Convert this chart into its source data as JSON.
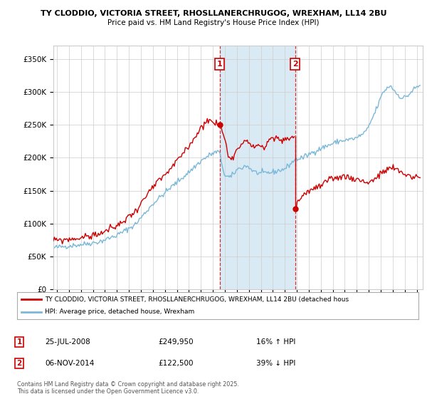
{
  "title1": "TY CLODDIO, VICTORIA STREET, RHOSLLANERCHRUGOG, WREXHAM, LL14 2BU",
  "title2": "Price paid vs. HM Land Registry's House Price Index (HPI)",
  "ylabel_ticks": [
    "£0",
    "£50K",
    "£100K",
    "£150K",
    "£200K",
    "£250K",
    "£300K",
    "£350K"
  ],
  "ytick_values": [
    0,
    50000,
    100000,
    150000,
    200000,
    250000,
    300000,
    350000
  ],
  "ylim": [
    0,
    370000
  ],
  "xlim_start": 1994.7,
  "xlim_end": 2025.5,
  "legend_line1": "TY CLODDIO, VICTORIA STREET, RHOSLLANERCHRUGOG, WREXHAM, LL14 2BU (detached hous",
  "legend_line2": "HPI: Average price, detached house, Wrexham",
  "sale1_date": "25-JUL-2008",
  "sale1_price": "£249,950",
  "sale1_change": "16% ↑ HPI",
  "sale1_year": 2008.56,
  "sale1_value": 249950,
  "sale2_date": "06-NOV-2014",
  "sale2_price": "£122,500",
  "sale2_change": "39% ↓ HPI",
  "sale2_year": 2014.85,
  "sale2_value": 122500,
  "hpi_color": "#7ab8d9",
  "price_color": "#cc0000",
  "shaded_region_color": "#daeaf5",
  "footer": "Contains HM Land Registry data © Crown copyright and database right 2025.\nThis data is licensed under the Open Government Licence v3.0.",
  "background_color": "#ffffff",
  "grid_color": "#cccccc"
}
